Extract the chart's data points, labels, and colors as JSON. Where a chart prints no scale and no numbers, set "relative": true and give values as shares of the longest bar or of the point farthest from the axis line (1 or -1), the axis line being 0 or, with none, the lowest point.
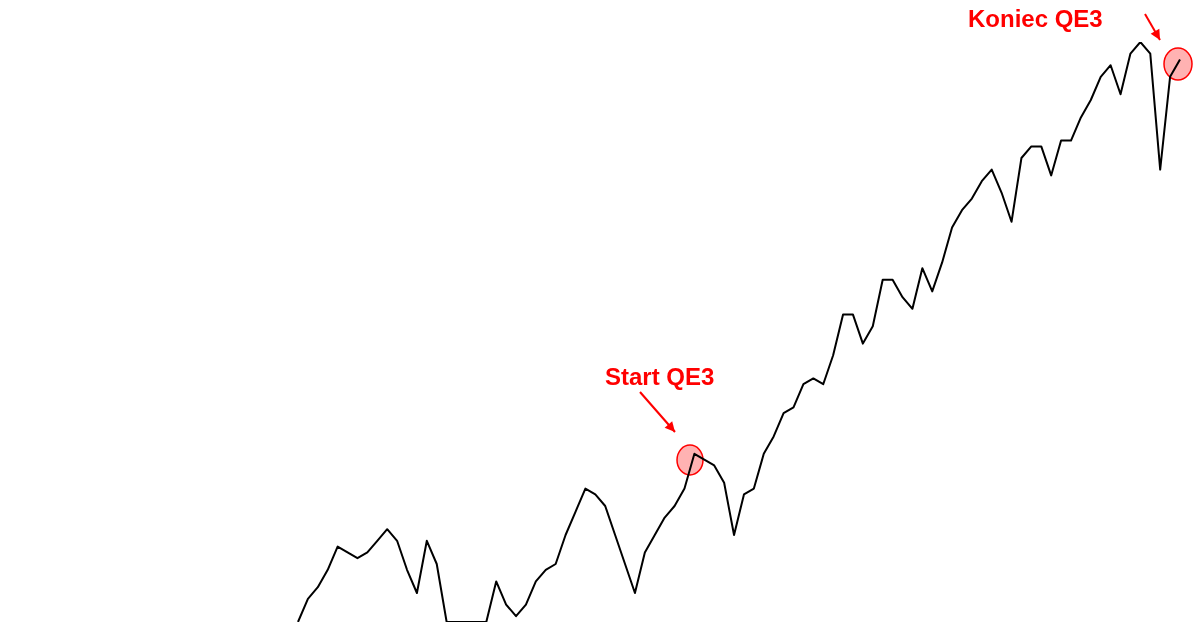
{
  "chart_data": {
    "type": "line",
    "relative": true,
    "marker": "none",
    "legend": false,
    "categories": [
      null,
      null,
      null,
      null,
      null,
      null,
      null,
      null,
      null,
      null,
      null,
      null,
      null,
      null,
      null,
      null,
      null,
      null,
      null,
      null,
      null,
      null,
      null,
      null,
      null,
      null,
      null,
      null,
      null,
      null,
      null,
      null,
      null,
      null,
      null,
      null,
      null,
      null,
      null,
      null,
      null,
      null,
      null,
      null,
      null,
      null,
      null,
      null,
      null,
      null,
      null,
      null,
      null,
      null,
      null,
      null,
      null,
      null,
      null,
      null,
      null,
      null,
      null,
      null,
      null,
      null,
      null,
      null,
      null,
      null,
      null,
      null,
      null,
      null,
      null,
      null,
      null,
      null,
      null,
      null,
      null,
      null,
      null,
      null,
      null,
      null,
      null,
      null,
      null,
      null
    ],
    "series": [
      {
        "color": "#000000",
        "values": [
          0,
          0.04,
          0.06,
          0.09,
          0.13,
          0.12,
          0.11,
          0.12,
          0.14,
          0.16,
          0.14,
          0.09,
          0.05,
          0.14,
          0.1,
          0,
          0,
          0,
          0,
          0,
          0.07,
          0.03,
          0.01,
          0.03,
          0.07,
          0.09,
          0.1,
          0.15,
          0.19,
          0.23,
          0.22,
          0.2,
          0.15,
          0.1,
          0.05,
          0.12,
          0.15,
          0.18,
          0.2,
          0.23,
          0.29,
          0.28,
          0.27,
          0.24,
          0.15,
          0.22,
          0.23,
          0.29,
          0.32,
          0.36,
          0.37,
          0.41,
          0.42,
          0.41,
          0.46,
          0.53,
          0.53,
          0.48,
          0.51,
          0.59,
          0.59,
          0.56,
          0.54,
          0.61,
          0.57,
          0.62,
          0.68,
          0.71,
          0.73,
          0.76,
          0.78,
          0.74,
          0.69,
          0.8,
          0.82,
          0.82,
          0.77,
          0.83,
          0.83,
          0.87,
          0.9,
          0.94,
          0.96,
          0.91,
          0.98,
          1,
          0.98,
          0.78,
          0.94,
          0.97
        ]
      }
    ],
    "annotations": [
      "Start QE3",
      "Koniec QE3"
    ]
  }
}
